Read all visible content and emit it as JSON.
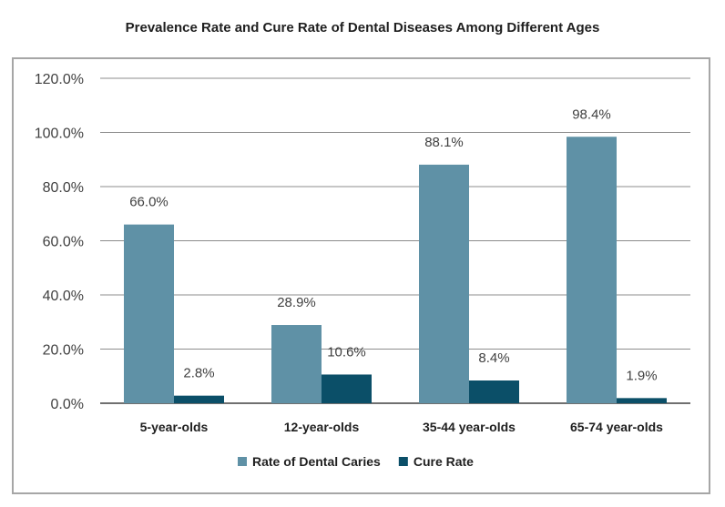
{
  "chart_data": {
    "type": "bar",
    "title": "Prevalence Rate and Cure Rate of Dental Diseases Among Different Ages",
    "xlabel": "",
    "ylabel": "",
    "categories": [
      "5-year-olds",
      "12-year-olds",
      "35-44 year-olds",
      "65-74 year-olds"
    ],
    "series": [
      {
        "name": "Rate of Dental Caries",
        "color": "#5f91a6",
        "values": [
          66.0,
          28.9,
          88.1,
          98.4
        ],
        "labels": [
          "66.0%",
          "28.9%",
          "88.1%",
          "98.4%"
        ]
      },
      {
        "name": "Cure Rate",
        "color": "#0b4f68",
        "values": [
          2.8,
          10.6,
          8.4,
          1.9
        ],
        "labels": [
          "2.8%",
          "10.6%",
          "8.4%",
          "1.9%"
        ]
      }
    ],
    "ylim": [
      0,
      120
    ],
    "yticks": [
      0,
      20,
      40,
      60,
      80,
      100,
      120
    ],
    "ytick_labels": [
      "0.0%",
      "20.0%",
      "40.0%",
      "60.0%",
      "80.0%",
      "100.0%",
      "120.0%"
    ],
    "grid": true,
    "legend_position": "bottom"
  }
}
